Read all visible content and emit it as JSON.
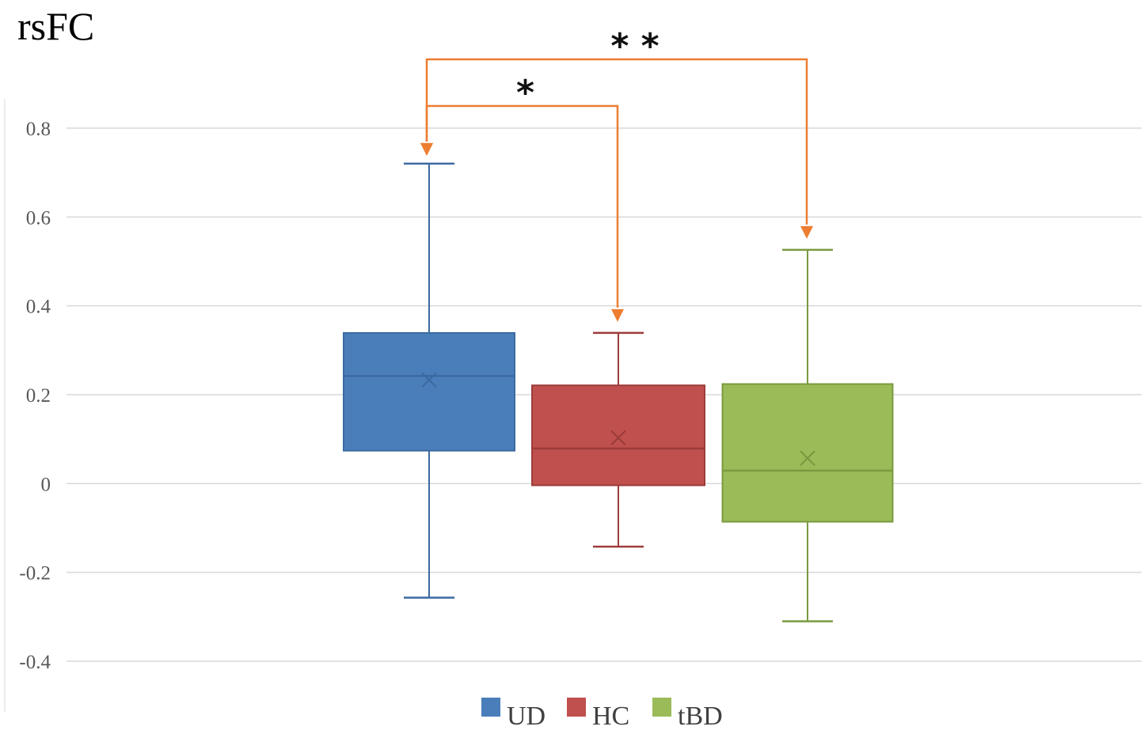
{
  "panel_title": "rsFC",
  "chart_data": {
    "type": "box",
    "title": "",
    "xlabel": "",
    "ylabel": "",
    "ylim": [
      -0.4,
      0.8
    ],
    "yticks": [
      0.8,
      0.6,
      0.4,
      0.2,
      0,
      -0.2,
      -0.4
    ],
    "ytick_labels": [
      "0.8",
      "0.6",
      "0.4",
      "0.2",
      "0",
      "-0.2",
      "-0.4"
    ],
    "grid": true,
    "legend_position": "bottom",
    "series": [
      {
        "name": "UD",
        "color": "#4a7ebb",
        "stroke": "#3b6aa0",
        "min": -0.257,
        "q1": 0.074,
        "median": 0.242,
        "q3": 0.339,
        "max": 0.72,
        "mean": 0.233
      },
      {
        "name": "HC",
        "color": "#c0504d",
        "stroke": "#9c3c3a",
        "min": -0.142,
        "q1": -0.004,
        "median": 0.079,
        "q3": 0.221,
        "max": 0.339,
        "mean": 0.103
      },
      {
        "name": "tBD",
        "color": "#9bbb59",
        "stroke": "#7a9a3f",
        "min": -0.31,
        "q1": -0.086,
        "median": 0.029,
        "q3": 0.224,
        "max": 0.526,
        "mean": 0.057
      }
    ],
    "annotations": [
      {
        "label": "*",
        "from": "UD",
        "to": "HC",
        "color": "#ed7d31"
      },
      {
        "label": "* *",
        "from": "UD",
        "to": "tBD",
        "color": "#ed7d31"
      }
    ]
  }
}
